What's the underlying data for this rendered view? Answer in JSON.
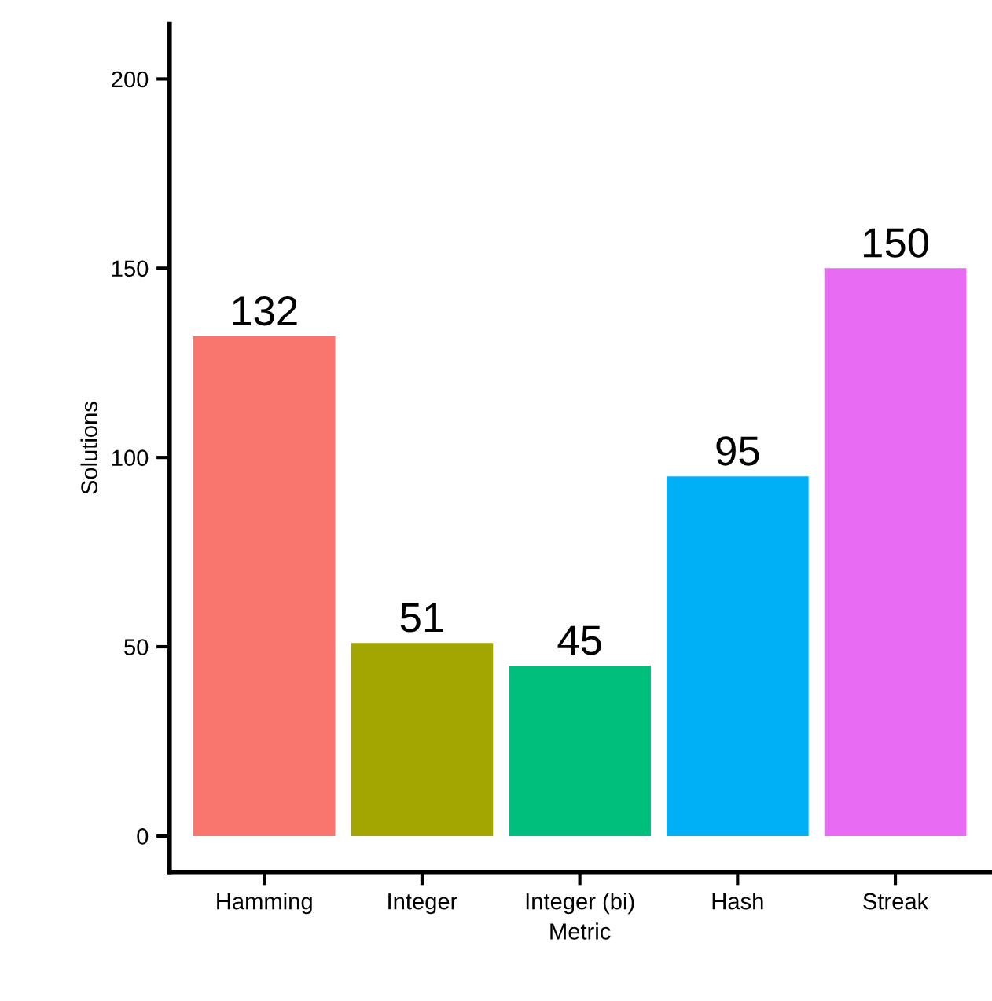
{
  "chart_data": {
    "type": "bar",
    "xlabel": "Metric",
    "ylabel": "Solutions",
    "categories": [
      "Hamming",
      "Integer",
      "Integer (bi)",
      "Hash",
      "Streak"
    ],
    "values": [
      132,
      51,
      45,
      95,
      150
    ],
    "colors": [
      "#f8766d",
      "#a3a500",
      "#00bf7d",
      "#00b0f6",
      "#e76bf3"
    ],
    "ylim": [
      -9.5,
      214.5
    ],
    "yticks": [
      0,
      50,
      100,
      150,
      200
    ],
    "grid": false,
    "legend": false,
    "data_labels": true
  }
}
